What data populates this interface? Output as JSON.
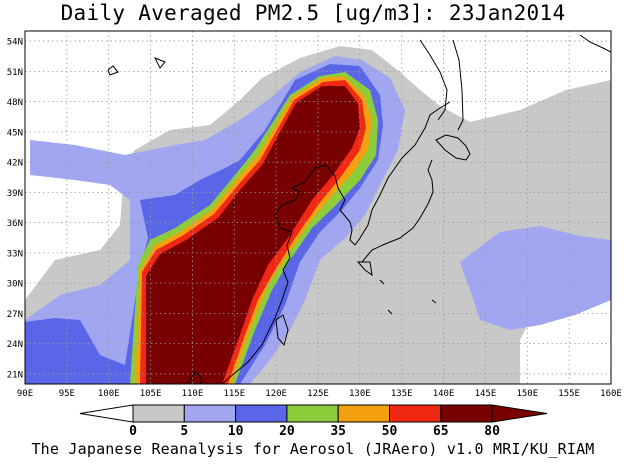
{
  "title": "Daily Averaged PM2.5 [ug/m3]: 23Jan2014",
  "credit": "The Japanese Reanalysis for Aerosol (JRAero) v1.0 MRI/KU_RIAM",
  "chart_data": {
    "type": "heatmap",
    "title": "Daily Averaged PM2.5 [ug/m3]: 23Jan2014",
    "x_axis": {
      "range": [
        90,
        160
      ],
      "ticks": [
        "90E",
        "95E",
        "100E",
        "105E",
        "110E",
        "115E",
        "120E",
        "125E",
        "130E",
        "135E",
        "140E",
        "145E",
        "150E",
        "155E",
        "160E"
      ]
    },
    "y_axis": {
      "range": [
        20,
        55
      ],
      "ticks": [
        "21N",
        "24N",
        "27N",
        "30N",
        "33N",
        "36N",
        "39N",
        "42N",
        "45N",
        "48N",
        "51N",
        "54N"
      ]
    },
    "grid": "dotted",
    "colorbar": {
      "levels": [
        "0",
        "5",
        "10",
        "20",
        "35",
        "50",
        "65",
        "80"
      ],
      "colors": [
        "#ffffff",
        "#c8c8c8",
        "#a0a6f0",
        "#5a66e8",
        "#8ccd3c",
        "#f5a00f",
        "#f02814",
        "#780000"
      ]
    }
  }
}
